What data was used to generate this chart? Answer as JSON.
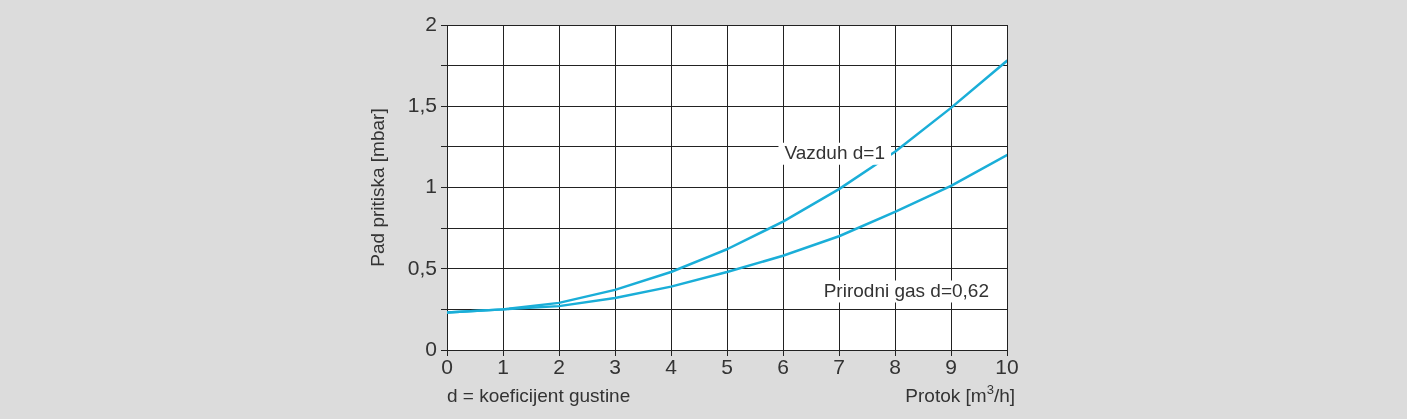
{
  "chart_data": {
    "type": "line",
    "xlabel": "Protok [m$^{3}$/h]",
    "ylabel": "Pad pritiska [mbar]",
    "x": [
      0,
      1,
      2,
      3,
      4,
      5,
      6,
      7,
      8,
      9,
      10
    ],
    "series": [
      {
        "name": "Vazduh d=1",
        "color": "#1aaed8",
        "values": [
          0.23,
          0.25,
          0.29,
          0.37,
          0.48,
          0.62,
          0.79,
          0.99,
          1.22,
          1.49,
          1.78
        ]
      },
      {
        "name": "Prirodni gas d=0,62",
        "color": "#1aaed8",
        "values": [
          0.23,
          0.25,
          0.27,
          0.32,
          0.39,
          0.48,
          0.58,
          0.7,
          0.85,
          1.01,
          1.2
        ]
      }
    ],
    "xlim": [
      0,
      10
    ],
    "xticks": [
      0,
      1,
      2,
      3,
      4,
      5,
      6,
      7,
      8,
      9,
      10
    ],
    "ylim": [
      0,
      2
    ],
    "yticks": [
      0,
      {
        "value": 0.25,
        "label": null
      },
      {
        "value": 0.5,
        "label": "0,5"
      },
      {
        "value": 0.75,
        "label": null
      },
      1,
      {
        "value": 1.25,
        "label": null
      },
      {
        "value": 1.5,
        "label": "1,5"
      },
      {
        "value": 1.75,
        "label": null
      },
      2
    ],
    "grid": true,
    "legend": false,
    "annotations": [
      "d = koeficijent gustine"
    ]
  }
}
